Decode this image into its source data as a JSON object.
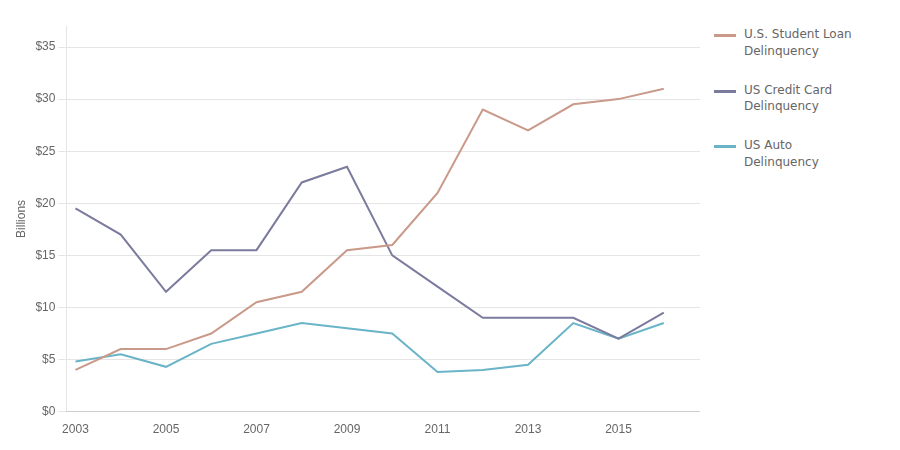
{
  "chart_data": {
    "type": "line",
    "ylabel": "Billions",
    "x": [
      2003,
      2004,
      2005,
      2006,
      2007,
      2008,
      2009,
      2010,
      2011,
      2012,
      2013,
      2014,
      2015,
      2016
    ],
    "series": [
      {
        "name": "U.S. Student Loan\nDelinquency",
        "color": "#c9998a",
        "values": [
          4.0,
          6.0,
          6.0,
          7.5,
          10.5,
          11.5,
          15.5,
          16.0,
          21.0,
          29.0,
          27.0,
          29.5,
          30.0,
          31.0
        ]
      },
      {
        "name": "US Credit Card\nDelinquency",
        "color": "#7b7b9e",
        "values": [
          19.5,
          17.0,
          11.5,
          15.5,
          15.5,
          22.0,
          23.5,
          15.0,
          12.0,
          9.0,
          9.0,
          9.0,
          7.0,
          9.5
        ]
      },
      {
        "name": "US Auto\nDelinquency",
        "color": "#6ab4c8",
        "values": [
          4.8,
          5.5,
          4.3,
          6.5,
          7.5,
          8.5,
          8.0,
          7.5,
          3.8,
          4.0,
          4.5,
          8.5,
          7.0,
          8.5
        ]
      }
    ],
    "xlim": [
      2002.8,
      2016.8
    ],
    "xticks": [
      2003,
      2005,
      2007,
      2009,
      2011,
      2013,
      2015
    ],
    "ylim": [
      0,
      37
    ],
    "yticks": [
      {
        "value": 0,
        "label": "$0"
      },
      {
        "value": 5,
        "label": "$5"
      },
      {
        "value": 10,
        "label": "$10"
      },
      {
        "value": 15,
        "label": "$15"
      },
      {
        "value": 20,
        "label": "$20"
      },
      {
        "value": 25,
        "label": "$25"
      },
      {
        "value": 30,
        "label": "$30"
      },
      {
        "value": 35,
        "label": "$35"
      }
    ],
    "grid": "y",
    "legend": "right"
  }
}
